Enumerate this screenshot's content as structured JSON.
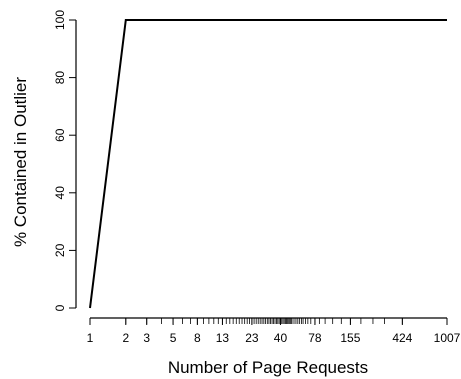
{
  "chart_data": {
    "type": "line",
    "title": "",
    "xlabel": "Number of Page Requests",
    "ylabel": "% Contained in Outlier",
    "x_scale": "log",
    "xlim": [
      1,
      1007
    ],
    "ylim": [
      0,
      100
    ],
    "grid": false,
    "y_ticks": [
      0,
      20,
      40,
      60,
      80,
      100
    ],
    "x_tick_labels": [
      1,
      2,
      3,
      5,
      8,
      13,
      23,
      40,
      78,
      155,
      424,
      1007
    ],
    "x_rug": [
      2,
      3,
      4,
      5,
      6,
      7,
      8,
      9,
      10,
      11,
      12,
      13,
      14,
      15,
      16,
      17,
      18,
      19,
      20,
      21,
      22,
      23,
      24,
      25,
      26,
      27,
      28,
      29,
      30,
      31,
      32,
      33,
      34,
      35,
      36,
      37,
      38,
      39,
      40,
      41,
      42,
      43,
      44,
      45,
      46,
      47,
      48,
      49,
      50,
      52,
      54,
      56,
      58,
      60,
      62,
      65,
      68,
      72,
      78,
      85,
      95,
      110,
      130,
      155,
      190,
      240,
      300,
      424,
      1007
    ],
    "series": [
      {
        "name": "",
        "x": [
          1,
          2,
          1007
        ],
        "y": [
          0,
          100,
          100
        ]
      }
    ]
  }
}
